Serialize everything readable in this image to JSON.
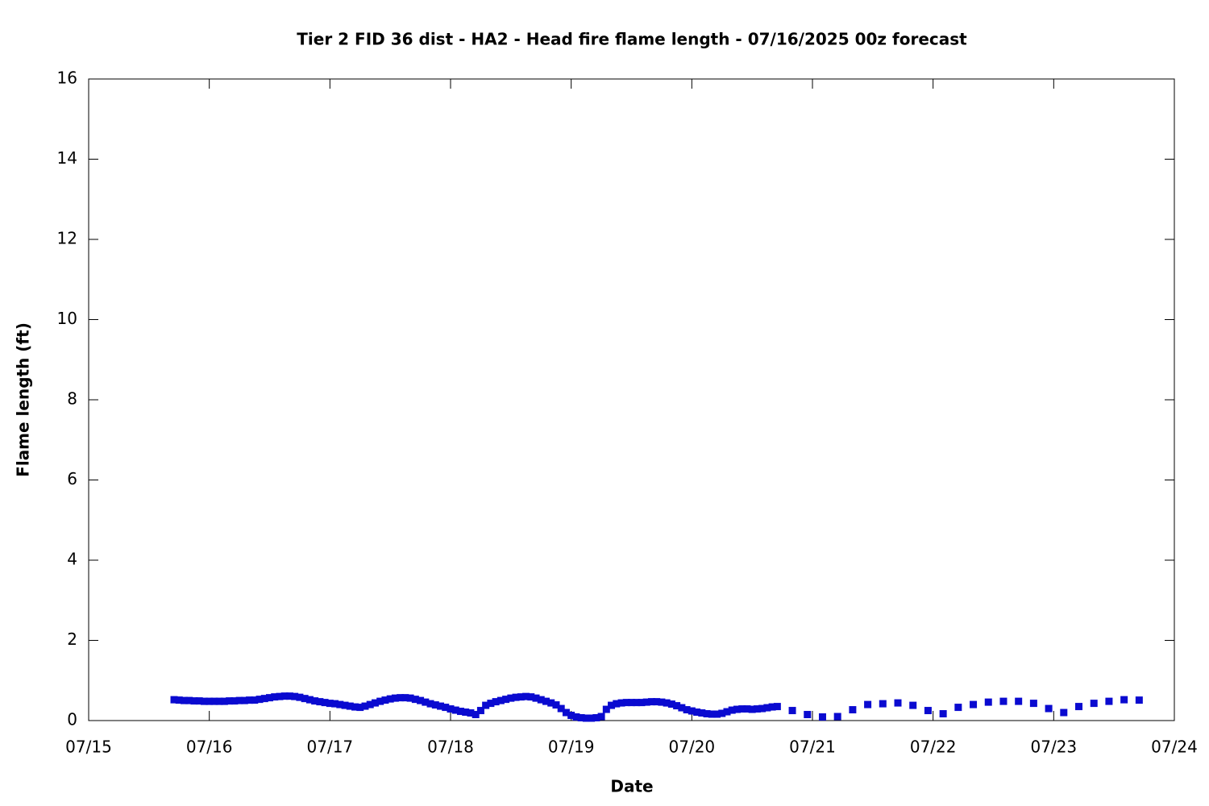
{
  "chart_data": {
    "type": "scatter",
    "title": "Tier 2 FID 36 dist - HA2 - Head fire flame length - 07/16/2025 00z forecast",
    "x_label": "Date",
    "y_label": "Flame length (ft)",
    "color": "#0a0ad0",
    "xlim": [
      0,
      216
    ],
    "xticks": [
      {
        "value": 0,
        "label": "07/15"
      },
      {
        "value": 24,
        "label": "07/16"
      },
      {
        "value": 48,
        "label": "07/17"
      },
      {
        "value": 72,
        "label": "07/18"
      },
      {
        "value": 96,
        "label": "07/19"
      },
      {
        "value": 120,
        "label": "07/20"
      },
      {
        "value": 144,
        "label": "07/21"
      },
      {
        "value": 168,
        "label": "07/22"
      },
      {
        "value": 192,
        "label": "07/23"
      },
      {
        "value": 216,
        "label": "07/24"
      }
    ],
    "ylim": [
      0,
      16
    ],
    "yticks": [
      0,
      2,
      4,
      6,
      8,
      10,
      12,
      14,
      16
    ],
    "x": [
      17,
      18,
      19,
      20,
      21,
      22,
      23,
      24,
      25,
      26,
      27,
      28,
      29,
      30,
      31,
      32,
      33,
      34,
      35,
      36,
      37,
      38,
      39,
      40,
      41,
      42,
      43,
      44,
      45,
      46,
      47,
      48,
      49,
      50,
      51,
      52,
      53,
      54,
      55,
      56,
      57,
      58,
      59,
      60,
      61,
      62,
      63,
      64,
      65,
      66,
      67,
      68,
      69,
      70,
      71,
      72,
      73,
      74,
      75,
      76,
      77,
      78,
      79,
      80,
      81,
      82,
      83,
      84,
      85,
      86,
      87,
      88,
      89,
      90,
      91,
      92,
      93,
      94,
      95,
      96,
      97,
      98,
      99,
      100,
      101,
      102,
      103,
      104,
      105,
      106,
      107,
      108,
      109,
      110,
      111,
      112,
      113,
      114,
      115,
      116,
      117,
      118,
      119,
      120,
      121,
      122,
      123,
      124,
      125,
      126,
      127,
      128,
      129,
      130,
      131,
      132,
      133,
      134,
      135,
      136,
      137,
      140,
      143,
      146,
      149,
      152,
      155,
      158,
      161,
      164,
      167,
      170,
      173,
      176,
      179,
      182,
      185,
      188,
      191,
      194,
      197,
      200,
      203,
      206,
      209
    ],
    "values": [
      0.52,
      0.51,
      0.5,
      0.5,
      0.49,
      0.49,
      0.48,
      0.48,
      0.48,
      0.48,
      0.48,
      0.49,
      0.49,
      0.5,
      0.5,
      0.51,
      0.51,
      0.53,
      0.55,
      0.57,
      0.59,
      0.6,
      0.61,
      0.61,
      0.6,
      0.58,
      0.55,
      0.52,
      0.49,
      0.47,
      0.45,
      0.43,
      0.42,
      0.4,
      0.38,
      0.36,
      0.34,
      0.33,
      0.36,
      0.4,
      0.44,
      0.48,
      0.51,
      0.54,
      0.56,
      0.57,
      0.57,
      0.56,
      0.53,
      0.5,
      0.46,
      0.42,
      0.39,
      0.36,
      0.33,
      0.29,
      0.26,
      0.23,
      0.21,
      0.19,
      0.15,
      0.25,
      0.38,
      0.43,
      0.47,
      0.5,
      0.53,
      0.56,
      0.58,
      0.59,
      0.6,
      0.59,
      0.56,
      0.52,
      0.48,
      0.44,
      0.39,
      0.3,
      0.2,
      0.13,
      0.09,
      0.07,
      0.06,
      0.06,
      0.07,
      0.1,
      0.28,
      0.38,
      0.42,
      0.44,
      0.45,
      0.45,
      0.45,
      0.45,
      0.46,
      0.47,
      0.47,
      0.46,
      0.44,
      0.41,
      0.37,
      0.32,
      0.27,
      0.24,
      0.21,
      0.19,
      0.17,
      0.16,
      0.16,
      0.18,
      0.22,
      0.26,
      0.28,
      0.29,
      0.29,
      0.28,
      0.29,
      0.3,
      0.32,
      0.34,
      0.35,
      0.25,
      0.15,
      0.09,
      0.1,
      0.27,
      0.4,
      0.42,
      0.44,
      0.38,
      0.25,
      0.17,
      0.33,
      0.4,
      0.46,
      0.48,
      0.48,
      0.43,
      0.3,
      0.2,
      0.35,
      0.43,
      0.48,
      0.52,
      0.51
    ]
  }
}
